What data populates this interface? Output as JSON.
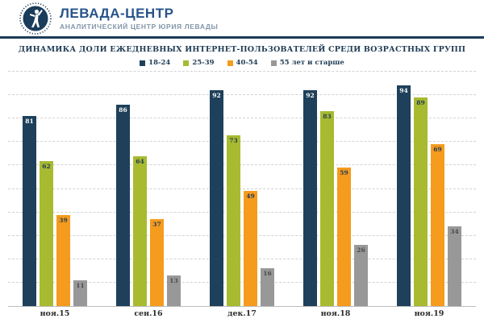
{
  "header": {
    "brand": "ЛЕВАДА-ЦЕНТР",
    "subtitle": "АНАЛИТИЧЕСКИЙ ЦЕНТР ЮРИЯ ЛЕВАДЫ"
  },
  "colors": {
    "header_brand": "#275489",
    "header_subtitle": "#8295A8",
    "header_rule": "#1B3C5A",
    "title_text": "#1F3C55",
    "axis_line": "#bdbdbd",
    "gridline": "#d2d2d2"
  },
  "chart_data": {
    "type": "bar",
    "title": "ДИНАМИКА ДОЛИ ЕЖЕДНЕВНЫХ ИНТЕРНЕТ-ПОЛЬЗОВАТЕЛЕЙ СРЕДИ ВОЗРАСТНЫХ ГРУПП",
    "categories": [
      "ноя.15",
      "сен.16",
      "дек.17",
      "ноя.18",
      "ноя.19"
    ],
    "series": [
      {
        "name": "18-24",
        "color": "#1E405A",
        "label_color": "#ffffff",
        "values": [
          81,
          86,
          92,
          92,
          94
        ]
      },
      {
        "name": "25-39",
        "color": "#A8BA30",
        "label_color": "#1F3C55",
        "values": [
          62,
          64,
          73,
          83,
          89
        ]
      },
      {
        "name": "40-54",
        "color": "#F59B1E",
        "label_color": "#1F3C55",
        "values": [
          39,
          37,
          49,
          59,
          69
        ]
      },
      {
        "name": "55 лет и старше",
        "color": "#989898",
        "label_color": "#4a4a4a",
        "values": [
          11,
          13,
          16,
          26,
          34
        ]
      }
    ],
    "ylim": [
      0,
      100
    ],
    "grid": "horizontal dashed, every 10",
    "legend_position": "top center",
    "value_labels": "inside bar top"
  }
}
